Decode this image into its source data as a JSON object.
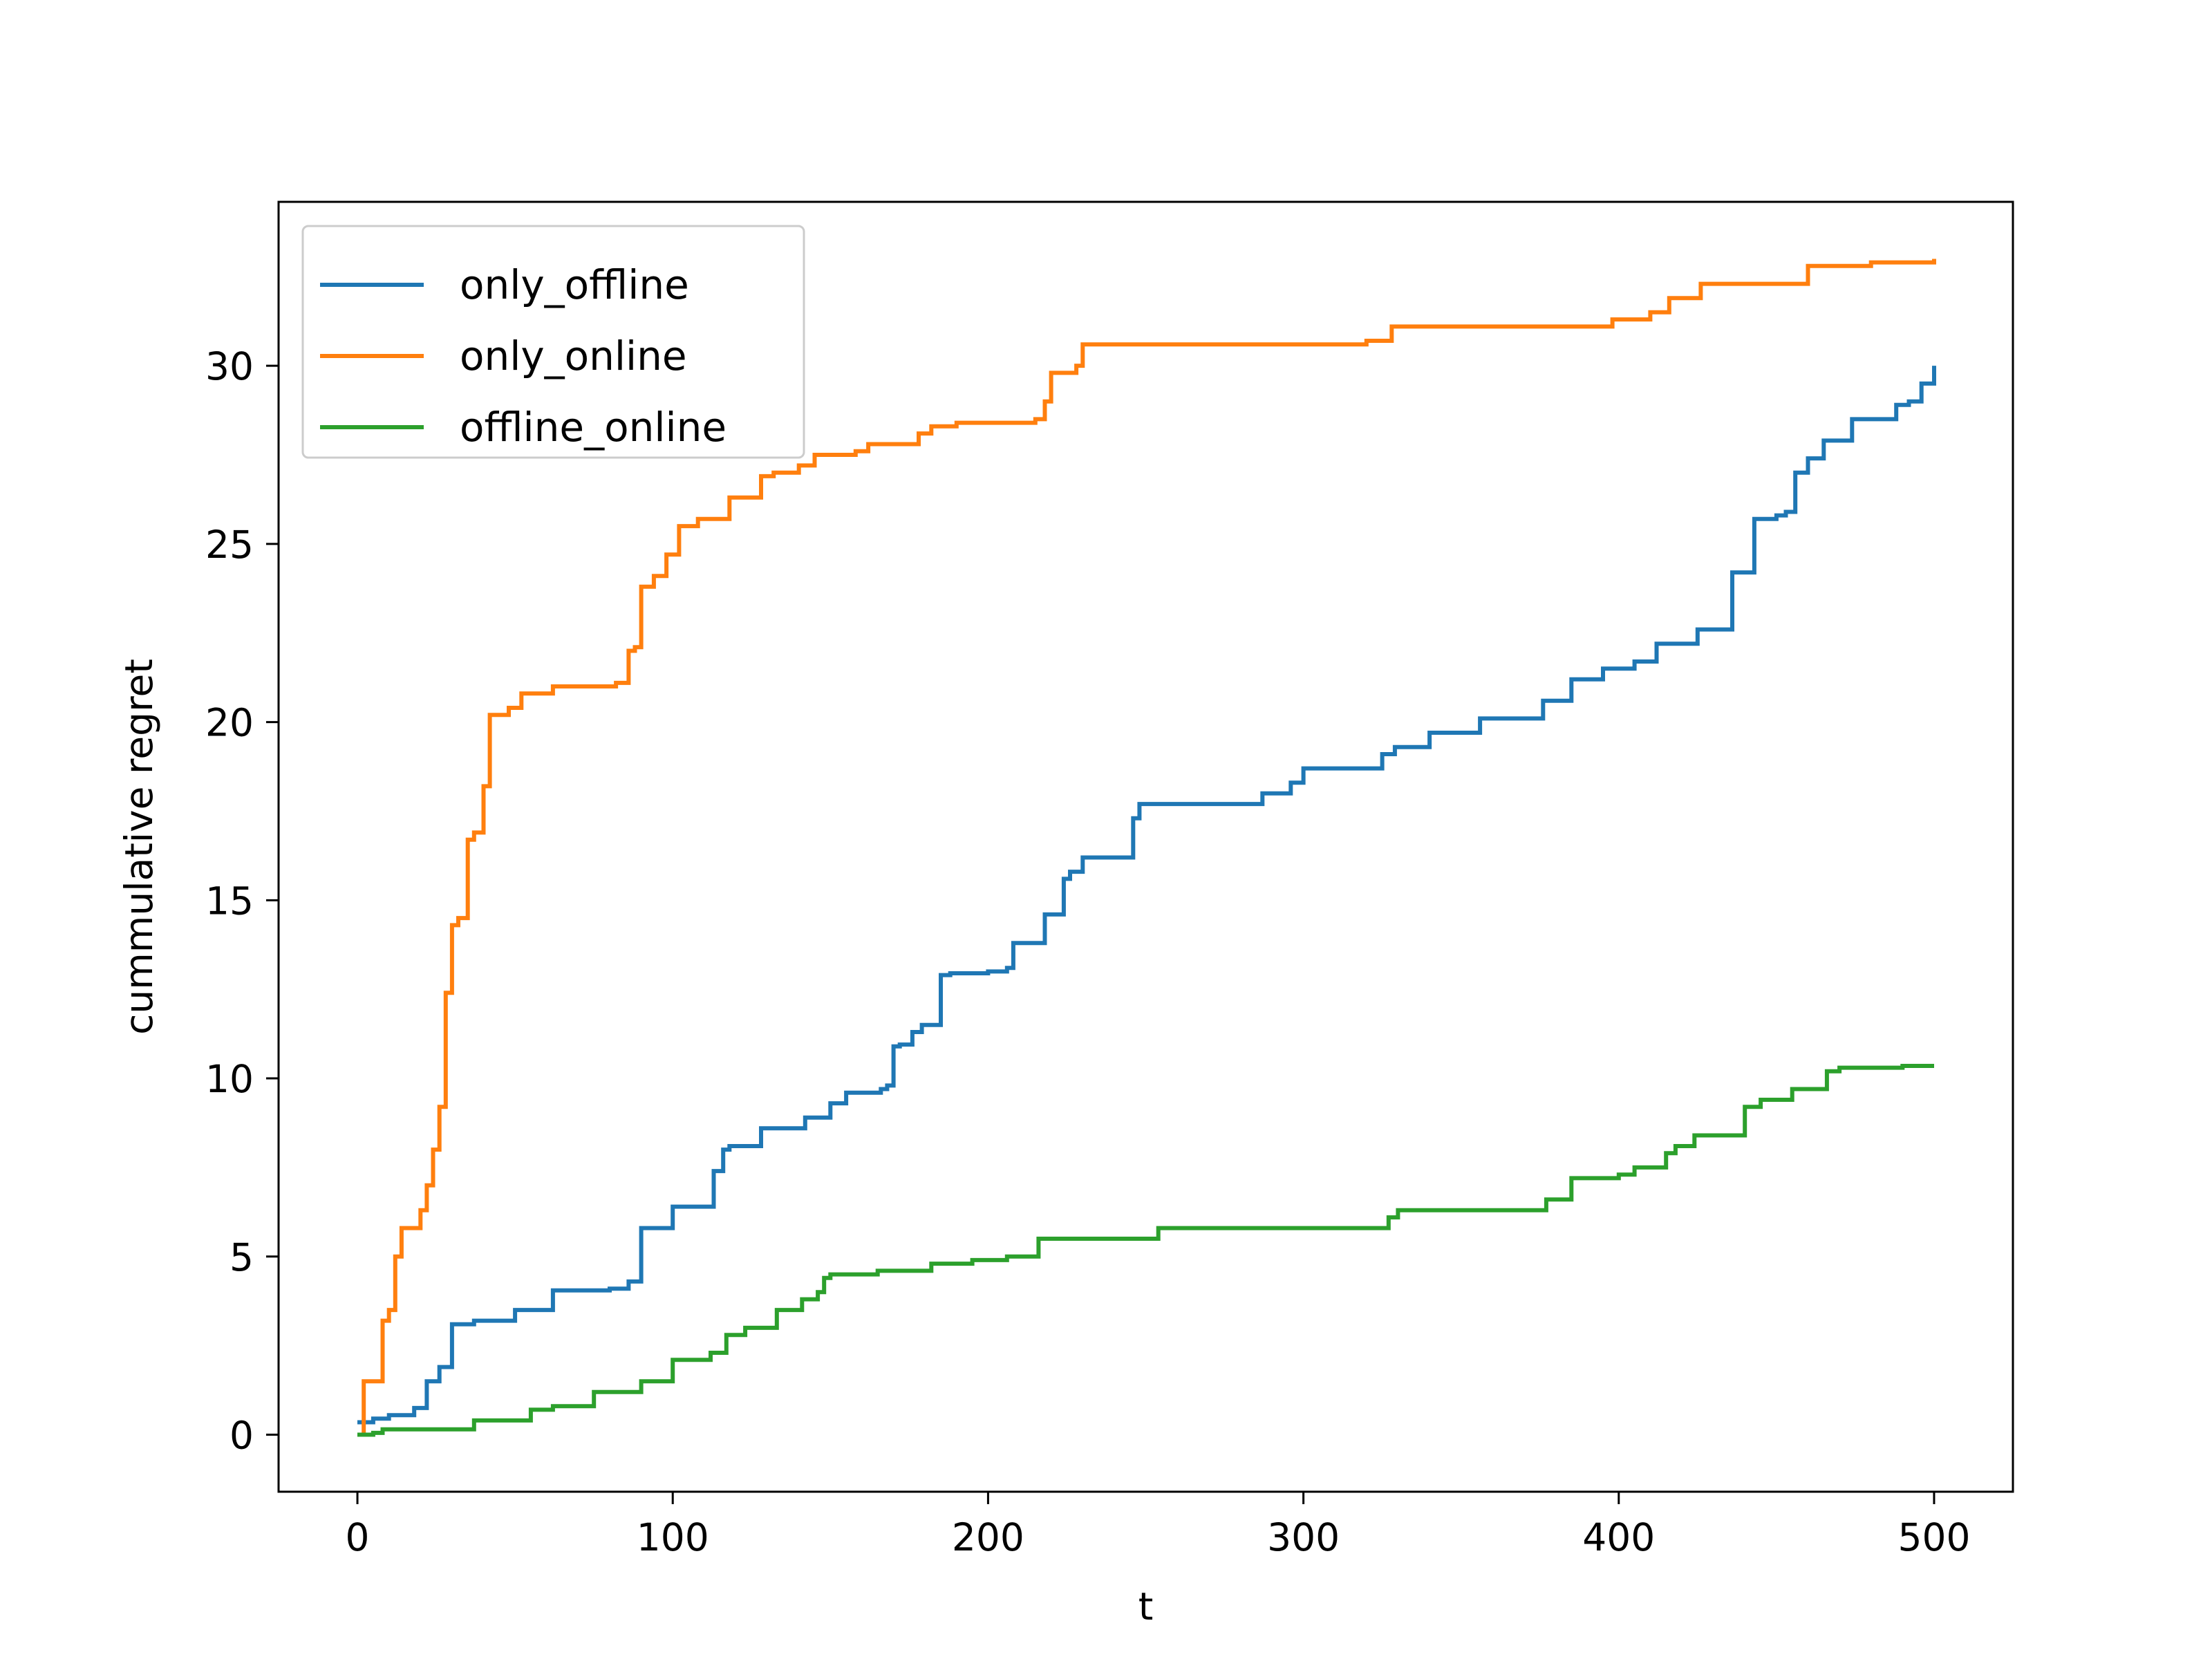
{
  "chart_data": {
    "type": "line",
    "title": "",
    "xlabel": "t",
    "ylabel": "cummulative regret",
    "xlim": [
      -25,
      525
    ],
    "ylim": [
      -1.6,
      34.6
    ],
    "xticks": [
      0,
      100,
      200,
      300,
      400,
      500
    ],
    "yticks": [
      0,
      5,
      10,
      15,
      20,
      25,
      30
    ],
    "grid": false,
    "legend_position": "upper-left",
    "series": [
      {
        "name": "only_offline",
        "color": "#1f77b4",
        "x": [
          0,
          5,
          10,
          18,
          22,
          26,
          30,
          37,
          50,
          55,
          62,
          65,
          80,
          86,
          88,
          90,
          100,
          113,
          116,
          118,
          128,
          142,
          145,
          150,
          155,
          166,
          168,
          170,
          172,
          176,
          179,
          185,
          188,
          200,
          206,
          208,
          218,
          221,
          224,
          226,
          230,
          244,
          246,
          248,
          284,
          287,
          294,
          296,
          300,
          313,
          325,
          329,
          335,
          340,
          350,
          356,
          362,
          370,
          376,
          378,
          385,
          390,
          395,
          405,
          412,
          425,
          434,
          436,
          441,
          443,
          450,
          453,
          456,
          460,
          465,
          474,
          480,
          488,
          492,
          496,
          500
        ],
        "y": [
          0.35,
          0.45,
          0.55,
          0.75,
          1.5,
          1.9,
          3.1,
          3.2,
          3.5,
          3.5,
          4.05,
          4.05,
          4.1,
          4.3,
          4.3,
          5.8,
          6.4,
          7.4,
          8.0,
          8.1,
          8.6,
          8.9,
          8.9,
          9.3,
          9.6,
          9.7,
          9.8,
          10.9,
          10.95,
          11.3,
          11.5,
          12.9,
          12.95,
          13.0,
          13.1,
          13.8,
          14.6,
          14.6,
          15.6,
          15.8,
          16.2,
          16.2,
          17.3,
          17.7,
          17.7,
          18.0,
          18.0,
          18.3,
          18.7,
          18.7,
          19.1,
          19.3,
          19.3,
          19.7,
          19.7,
          20.1,
          20.1,
          20.1,
          20.6,
          20.6,
          21.2,
          21.2,
          21.5,
          21.7,
          22.2,
          22.6,
          22.6,
          24.2,
          24.2,
          25.7,
          25.8,
          25.9,
          27.0,
          27.4,
          27.9,
          28.5,
          28.5,
          28.9,
          29.0,
          29.5,
          30.0
        ]
      },
      {
        "name": "only_online",
        "color": "#ff7f0e",
        "x": [
          0,
          2,
          4,
          8,
          10,
          12,
          14,
          18,
          20,
          22,
          24,
          26,
          28,
          30,
          32,
          35,
          37,
          40,
          42,
          45,
          48,
          52,
          55,
          62,
          70,
          76,
          82,
          86,
          88,
          90,
          94,
          98,
          102,
          108,
          118,
          124,
          128,
          132,
          140,
          145,
          150,
          158,
          162,
          168,
          178,
          182,
          185,
          190,
          200,
          215,
          218,
          220,
          224,
          228,
          230,
          240,
          320,
          328,
          340,
          360,
          380,
          398,
          402,
          410,
          416,
          426,
          440,
          460,
          480,
          500
        ],
        "y": [
          0.0,
          1.5,
          1.5,
          3.2,
          3.5,
          5.0,
          5.8,
          5.8,
          6.3,
          7.0,
          8.0,
          9.2,
          12.4,
          14.3,
          14.5,
          16.7,
          16.9,
          18.2,
          20.2,
          20.2,
          20.4,
          20.8,
          20.8,
          21.0,
          21.0,
          21.0,
          21.1,
          22.0,
          22.1,
          23.8,
          24.1,
          24.7,
          25.5,
          25.7,
          26.3,
          26.3,
          26.9,
          27.0,
          27.2,
          27.5,
          27.5,
          27.6,
          27.8,
          27.8,
          28.1,
          28.3,
          28.3,
          28.4,
          28.4,
          28.5,
          29.0,
          29.8,
          29.8,
          30.0,
          30.6,
          30.6,
          30.7,
          31.1,
          31.1,
          31.1,
          31.1,
          31.3,
          31.3,
          31.5,
          31.9,
          32.3,
          32.3,
          32.8,
          32.9,
          33.0
        ]
      },
      {
        "name": "offline_online",
        "color": "#2ca02c",
        "x": [
          0,
          5,
          8,
          15,
          20,
          30,
          37,
          45,
          50,
          55,
          62,
          70,
          75,
          80,
          90,
          95,
          100,
          108,
          112,
          117,
          123,
          128,
          133,
          141,
          146,
          148,
          150,
          165,
          182,
          195,
          206,
          216,
          232,
          254,
          276,
          300,
          327,
          330,
          340,
          360,
          375,
          377,
          382,
          385,
          400,
          405,
          415,
          418,
          424,
          436,
          440,
          445,
          455,
          463,
          466,
          470,
          480,
          490,
          500
        ],
        "y": [
          0.0,
          0.05,
          0.15,
          0.15,
          0.15,
          0.15,
          0.4,
          0.4,
          0.4,
          0.7,
          0.8,
          0.8,
          1.2,
          1.2,
          1.5,
          1.5,
          2.1,
          2.1,
          2.3,
          2.8,
          3.0,
          3.0,
          3.5,
          3.8,
          4.0,
          4.4,
          4.5,
          4.6,
          4.8,
          4.9,
          5.0,
          5.5,
          5.5,
          5.8,
          5.8,
          5.8,
          6.1,
          6.3,
          6.3,
          6.3,
          6.3,
          6.6,
          6.6,
          7.2,
          7.3,
          7.5,
          7.9,
          8.1,
          8.4,
          8.4,
          9.2,
          9.4,
          9.7,
          9.7,
          10.2,
          10.3,
          10.3,
          10.35,
          10.35
        ]
      }
    ]
  }
}
